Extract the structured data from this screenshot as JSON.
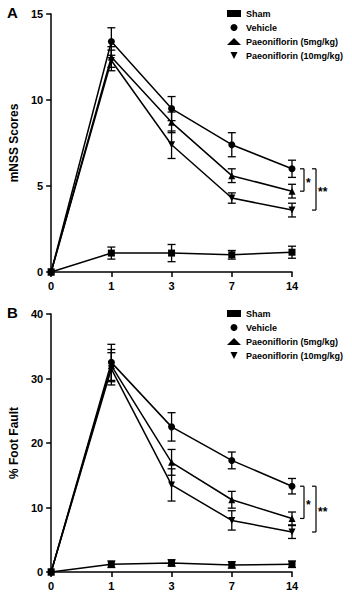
{
  "chart_data": [
    {
      "type": "line",
      "title": "A",
      "y_label": "mNSS Scores",
      "categories": [
        "0",
        "1",
        "3",
        "7",
        "14"
      ],
      "ylim": [
        0,
        15
      ],
      "yticks": [
        0,
        5,
        10,
        15
      ],
      "grid": false,
      "legend": "upper right",
      "series": [
        {
          "name": "Sham",
          "color": "#000000",
          "marker": "square",
          "values": [
            0,
            1.1,
            1.1,
            1.0,
            1.15
          ],
          "errors": [
            0,
            0.35,
            0.5,
            0.25,
            0.35
          ]
        },
        {
          "name": "Vehicle",
          "color": "#000000",
          "marker": "circle",
          "values": [
            0,
            13.4,
            9.5,
            7.4,
            6.0
          ],
          "errors": [
            0,
            0.8,
            0.7,
            0.7,
            0.5
          ]
        },
        {
          "name": "Paeoniflorin (5mg/kg)",
          "color": "#000000",
          "marker": "triangle",
          "values": [
            0,
            12.5,
            8.7,
            5.6,
            4.7
          ],
          "errors": [
            0,
            0.6,
            0.6,
            0.4,
            0.4
          ]
        },
        {
          "name": "Paeoniflorin (10mg/kg)",
          "color": "#000000",
          "marker": "triangle_down",
          "values": [
            0,
            12.3,
            7.4,
            4.3,
            3.6
          ],
          "errors": [
            0,
            0.6,
            0.8,
            0.3,
            0.4
          ]
        }
      ],
      "annotations": [
        {
          "text": "*",
          "x": "14",
          "between": [
            "Vehicle",
            "Paeoniflorin (5mg/kg)"
          ]
        },
        {
          "text": "**",
          "x": "14",
          "between": [
            "Vehicle",
            "Paeoniflorin (10mg/kg)"
          ]
        }
      ]
    },
    {
      "type": "line",
      "title": "B",
      "y_label": "% Foot Fault",
      "categories": [
        "0",
        "1",
        "3",
        "7",
        "14"
      ],
      "ylim": [
        0,
        40
      ],
      "yticks": [
        0,
        10,
        20,
        30,
        40
      ],
      "grid": false,
      "legend": "upper right",
      "series": [
        {
          "name": "Sham",
          "color": "#000000",
          "marker": "square",
          "values": [
            0,
            1.2,
            1.4,
            1.1,
            1.2
          ],
          "errors": [
            0,
            0.5,
            0.5,
            0.5,
            0.5
          ]
        },
        {
          "name": "Vehicle",
          "color": "#000000",
          "marker": "circle",
          "values": [
            0,
            32.5,
            22.5,
            17.3,
            13.3
          ],
          "errors": [
            0,
            2.8,
            2.2,
            1.3,
            1.2
          ]
        },
        {
          "name": "Paeoniflorin (5mg/kg)",
          "color": "#000000",
          "marker": "triangle",
          "values": [
            0,
            32.0,
            17.0,
            11.2,
            8.3
          ],
          "errors": [
            0,
            2.5,
            2.0,
            1.3,
            1.0
          ]
        },
        {
          "name": "Paeoniflorin (10mg/kg)",
          "color": "#000000",
          "marker": "triangle_down",
          "values": [
            0,
            31.5,
            13.5,
            8.0,
            6.2
          ],
          "errors": [
            0,
            2.5,
            2.5,
            1.5,
            1.0
          ]
        }
      ],
      "annotations": [
        {
          "text": "*",
          "x": "14",
          "between": [
            "Vehicle",
            "Paeoniflorin (5mg/kg)"
          ]
        },
        {
          "text": "**",
          "x": "14",
          "between": [
            "Vehicle",
            "Paeoniflorin (10mg/kg)"
          ]
        }
      ]
    }
  ]
}
